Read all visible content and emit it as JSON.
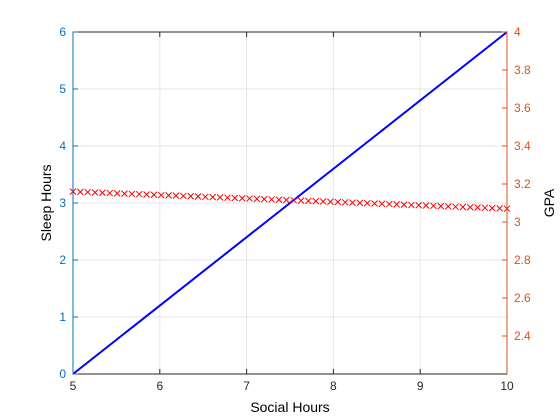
{
  "chart_data": {
    "type": "line",
    "title": "",
    "xlabel": "Social Hours",
    "ylabel_left": "Sleep Hours",
    "ylabel_right": "GPA",
    "xlim": [
      5,
      10
    ],
    "ylim_left": [
      0,
      6
    ],
    "ylim_right": [
      2.2,
      4
    ],
    "x_ticks": [
      "5",
      "6",
      "7",
      "8",
      "9",
      "10"
    ],
    "y_left_ticks": [
      "0",
      "1",
      "2",
      "3",
      "4",
      "5",
      "6"
    ],
    "y_right_ticks": [
      "2.4",
      "2.6",
      "2.8",
      "3",
      "3.2",
      "3.4",
      "3.6",
      "3.8",
      "4"
    ],
    "grid": true,
    "legend": "none",
    "colors": {
      "left_axis": "#0072BD",
      "right_axis": "#D95319",
      "left_series": "#0000FF",
      "right_series": "#FF0000",
      "grid": "#E6E6E6"
    },
    "series": [
      {
        "axis": "left",
        "style": "line",
        "x": [
          5,
          10
        ],
        "y": [
          0,
          6
        ]
      },
      {
        "axis": "right",
        "style": "x-markers",
        "x_range": [
          5,
          10
        ],
        "point_count": 60,
        "y_start": 3.16,
        "y_end": 3.07
      }
    ]
  }
}
